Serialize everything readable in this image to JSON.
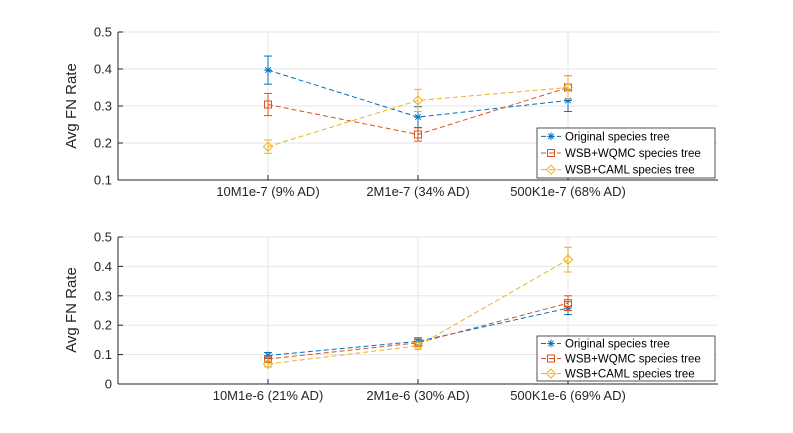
{
  "chart_data": [
    {
      "type": "line",
      "title": "",
      "xlabel": "",
      "ylabel": "Avg FN Rate",
      "ylim": [
        0.1,
        0.5
      ],
      "yticks": [
        "0.1",
        "0.2",
        "0.3",
        "0.4",
        "0.5"
      ],
      "grid": true,
      "legend_position": "bottom-right",
      "categories": [
        "10M1e-7 (9% AD)",
        "2M1e-7 (34% AD)",
        "500K1e-7 (68% AD)"
      ],
      "series": [
        {
          "name": "Original species tree",
          "color": "#0072BD",
          "marker": "star",
          "values": [
            0.397,
            0.27,
            0.315
          ],
          "errors": [
            0.038,
            0.028,
            0.03
          ]
        },
        {
          "name": "WSB+WQMC species tree",
          "color": "#D95319",
          "marker": "square",
          "values": [
            0.304,
            0.223,
            0.35
          ],
          "errors": [
            0.03,
            0.018,
            0.032
          ]
        },
        {
          "name": "WSB+CAML species tree",
          "color": "#EDB120",
          "marker": "diamond",
          "values": [
            0.19,
            0.315,
            0.35
          ],
          "errors": [
            0.018,
            0.03,
            0.032
          ]
        }
      ]
    },
    {
      "type": "line",
      "title": "",
      "xlabel": "",
      "ylabel": "Avg FN Rate",
      "ylim": [
        0,
        0.5
      ],
      "yticks": [
        "0",
        "0.1",
        "0.2",
        "0.3",
        "0.4",
        "0.5"
      ],
      "grid": true,
      "legend_position": "bottom-right",
      "categories": [
        "10M1e-6 (21% AD)",
        "2M1e-6 (30% AD)",
        "500K1e-6 (69% AD)"
      ],
      "series": [
        {
          "name": "Original species tree",
          "color": "#0072BD",
          "marker": "star",
          "values": [
            0.097,
            0.145,
            0.258
          ],
          "errors": [
            0.01,
            0.012,
            0.022
          ]
        },
        {
          "name": "WSB+WQMC species tree",
          "color": "#D95319",
          "marker": "square",
          "values": [
            0.085,
            0.14,
            0.275
          ],
          "errors": [
            0.01,
            0.012,
            0.025
          ]
        },
        {
          "name": "WSB+CAML species tree",
          "color": "#EDB120",
          "marker": "diamond",
          "values": [
            0.068,
            0.13,
            0.423
          ],
          "errors": [
            0.01,
            0.012,
            0.042
          ]
        }
      ]
    }
  ]
}
